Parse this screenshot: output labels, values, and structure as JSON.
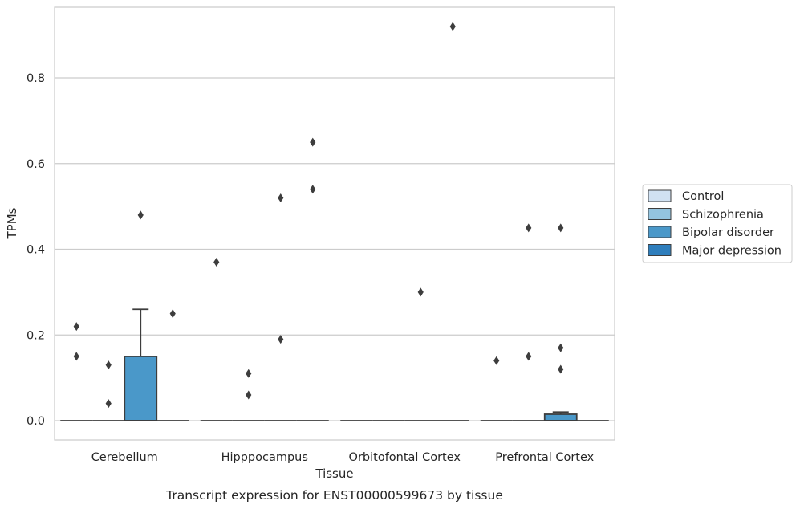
{
  "chart_data": {
    "type": "box",
    "title": "",
    "caption": "Transcript expression for ENST00000599673 by tissue",
    "xlabel": "Tissue",
    "ylabel": "TPMs",
    "ylim": [
      -0.045,
      0.965
    ],
    "yticks": [
      0.0,
      0.2,
      0.4,
      0.6,
      0.8
    ],
    "ytick_labels": [
      "0.0",
      "0.2",
      "0.4",
      "0.6",
      "0.8"
    ],
    "grid": "horizontal",
    "legend_position": "right",
    "categories": [
      "Cerebellum",
      "Hipppocampus",
      "Orbitofontal Cortex",
      "Prefrontal Cortex"
    ],
    "series": [
      {
        "name": "Control",
        "color": "#d0e1f2",
        "boxes": [
          {
            "q1": 0,
            "median": 0,
            "q3": 0,
            "whislo": 0,
            "whishi": 0,
            "fliers": [
              0.15,
              0.22
            ]
          },
          {
            "q1": 0,
            "median": 0,
            "q3": 0,
            "whislo": 0,
            "whishi": 0,
            "fliers": [
              0.37
            ]
          },
          {
            "q1": 0,
            "median": 0,
            "q3": 0,
            "whislo": 0,
            "whishi": 0,
            "fliers": []
          },
          {
            "q1": 0,
            "median": 0,
            "q3": 0,
            "whislo": 0,
            "whishi": 0,
            "fliers": [
              0.14
            ]
          }
        ]
      },
      {
        "name": "Schizophrenia",
        "color": "#94c4df",
        "boxes": [
          {
            "q1": 0,
            "median": 0,
            "q3": 0,
            "whislo": 0,
            "whishi": 0,
            "fliers": [
              0.04,
              0.13
            ]
          },
          {
            "q1": 0,
            "median": 0,
            "q3": 0,
            "whislo": 0,
            "whishi": 0,
            "fliers": [
              0.06,
              0.11
            ]
          },
          {
            "q1": 0,
            "median": 0,
            "q3": 0,
            "whislo": 0,
            "whishi": 0,
            "fliers": []
          },
          {
            "q1": 0,
            "median": 0,
            "q3": 0,
            "whislo": 0,
            "whishi": 0,
            "fliers": [
              0.15,
              0.45
            ]
          }
        ]
      },
      {
        "name": "Bipolar disorder",
        "color": "#4a98c9",
        "boxes": [
          {
            "q1": 0,
            "median": 0,
            "q3": 0.15,
            "whislo": 0,
            "whishi": 0.26,
            "fliers": [
              0.48
            ]
          },
          {
            "q1": 0,
            "median": 0,
            "q3": 0,
            "whislo": 0,
            "whishi": 0,
            "fliers": [
              0.19,
              0.52
            ]
          },
          {
            "q1": 0,
            "median": 0,
            "q3": 0,
            "whislo": 0,
            "whishi": 0,
            "fliers": [
              0.3
            ]
          },
          {
            "q1": 0,
            "median": 0,
            "q3": 0.015,
            "whislo": 0,
            "whishi": 0.02,
            "fliers": [
              0.12,
              0.17,
              0.45
            ]
          }
        ]
      },
      {
        "name": "Major depression",
        "color": "#2e7ebc",
        "boxes": [
          {
            "q1": 0,
            "median": 0,
            "q3": 0,
            "whislo": 0,
            "whishi": 0,
            "fliers": [
              0.25
            ]
          },
          {
            "q1": 0,
            "median": 0,
            "q3": 0,
            "whislo": 0,
            "whishi": 0,
            "fliers": [
              0.54,
              0.65
            ]
          },
          {
            "q1": 0,
            "median": 0,
            "q3": 0,
            "whislo": 0,
            "whishi": 0,
            "fliers": [
              0.92
            ]
          },
          {
            "q1": 0,
            "median": 0,
            "q3": 0,
            "whislo": 0,
            "whishi": 0,
            "fliers": []
          }
        ]
      }
    ]
  }
}
